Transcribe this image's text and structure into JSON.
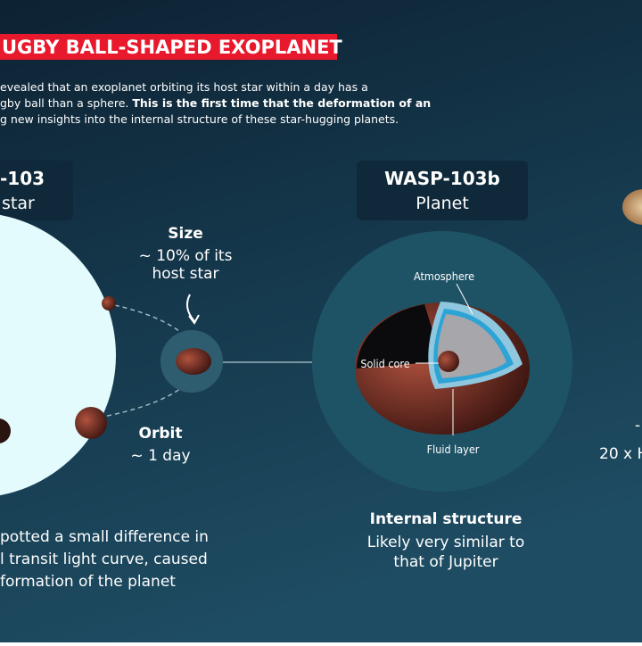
{
  "header": {
    "title": "UGBY BALL-SHAPED EXOPLANET",
    "intro": [
      "evealed that an exoplanet orbiting its host star within a day has a",
      {
        "plain": "gby ball than a sphere. ",
        "bold": "This is the first time that the deformation of an"
      },
      "g new insights into the internal structure of these star-hugging planets."
    ]
  },
  "star": {
    "name": "-103",
    "kind": "star"
  },
  "planet": {
    "name": "WASP-103b",
    "kind": "Planet"
  },
  "size": {
    "title": "Size",
    "lines": [
      "~ 10% of its",
      "host star"
    ]
  },
  "orbit": {
    "title": "Orbit",
    "value": "~ 1 day"
  },
  "layers": {
    "atmosphere": "Atmosphere",
    "core": "Solid core",
    "fluid": "Fluid layer"
  },
  "structure": {
    "title": "Internal structure",
    "lines": [
      "Likely very similar to",
      "that of Jupiter"
    ]
  },
  "jupiter": {
    "title": "-",
    "value": "20 x H"
  },
  "transit": {
    "lines": [
      "potted a small difference in",
      "l transit light curve, caused",
      "formation of the planet"
    ]
  }
}
